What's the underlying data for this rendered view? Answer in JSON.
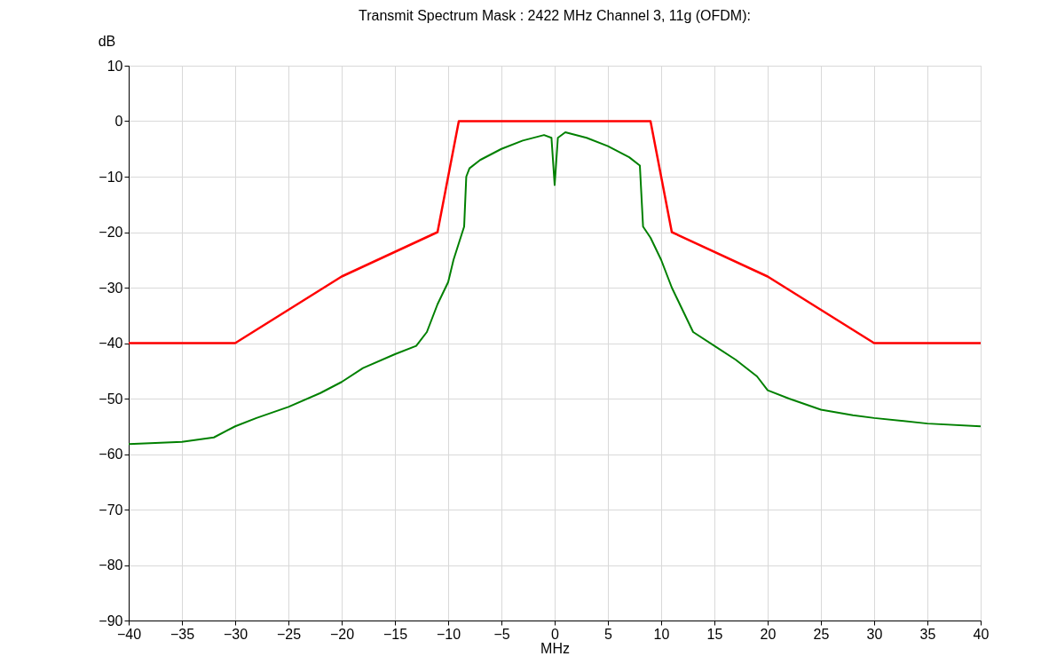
{
  "chart_data": {
    "type": "line",
    "title": "Transmit Spectrum Mask : 2422 MHz Channel 3, 11g (OFDM):",
    "xlabel": "MHz",
    "ylabel": "dB",
    "xlim": [
      -40,
      40
    ],
    "xticks": [
      -40,
      -35,
      -30,
      -25,
      -20,
      -15,
      -10,
      -5,
      0,
      5,
      10,
      15,
      20,
      25,
      30,
      35,
      40
    ],
    "ylim": [
      -90,
      10
    ],
    "yticks": [
      -90,
      -80,
      -70,
      -60,
      -50,
      -40,
      -30,
      -20,
      -10,
      0,
      10
    ],
    "grid": true,
    "marker": "none",
    "line_style": "solid",
    "series": [
      {
        "color": "#ff0000",
        "x": [
          -40,
          -30,
          -20,
          -11,
          -9,
          9,
          11,
          20,
          30,
          40
        ],
        "values": [
          -40,
          -40,
          -28,
          -20,
          0,
          0,
          -20,
          -28,
          -40,
          -40
        ]
      },
      {
        "color": "#008000",
        "x": [
          -40,
          -35,
          -32,
          -30,
          -28,
          -25,
          -22,
          -20,
          -18,
          -15,
          -13,
          -12,
          -11,
          -10,
          -9.5,
          -9,
          -8.5,
          -8.3,
          -8,
          -7,
          -5,
          -3,
          -1,
          -0.3,
          0,
          0.3,
          1,
          3,
          5,
          7,
          8,
          8.3,
          9,
          10,
          11,
          12,
          13,
          15,
          17,
          19,
          20,
          22,
          25,
          28,
          30,
          35,
          40
        ],
        "values": [
          -58.2,
          -57.8,
          -57,
          -55,
          -53.5,
          -51.5,
          -49,
          -47,
          -44.5,
          -42,
          -40.5,
          -38,
          -33,
          -29,
          -25,
          -22,
          -19,
          -10,
          -8.5,
          -7,
          -5,
          -3.5,
          -2.5,
          -3,
          -11.5,
          -3,
          -2,
          -3,
          -4.5,
          -6.5,
          -8,
          -19,
          -21,
          -25,
          -30,
          -34,
          -38,
          -40.5,
          -43,
          -46,
          -48.5,
          -50,
          -52,
          -53,
          -53.5,
          -54.5,
          -55
        ]
      }
    ]
  }
}
